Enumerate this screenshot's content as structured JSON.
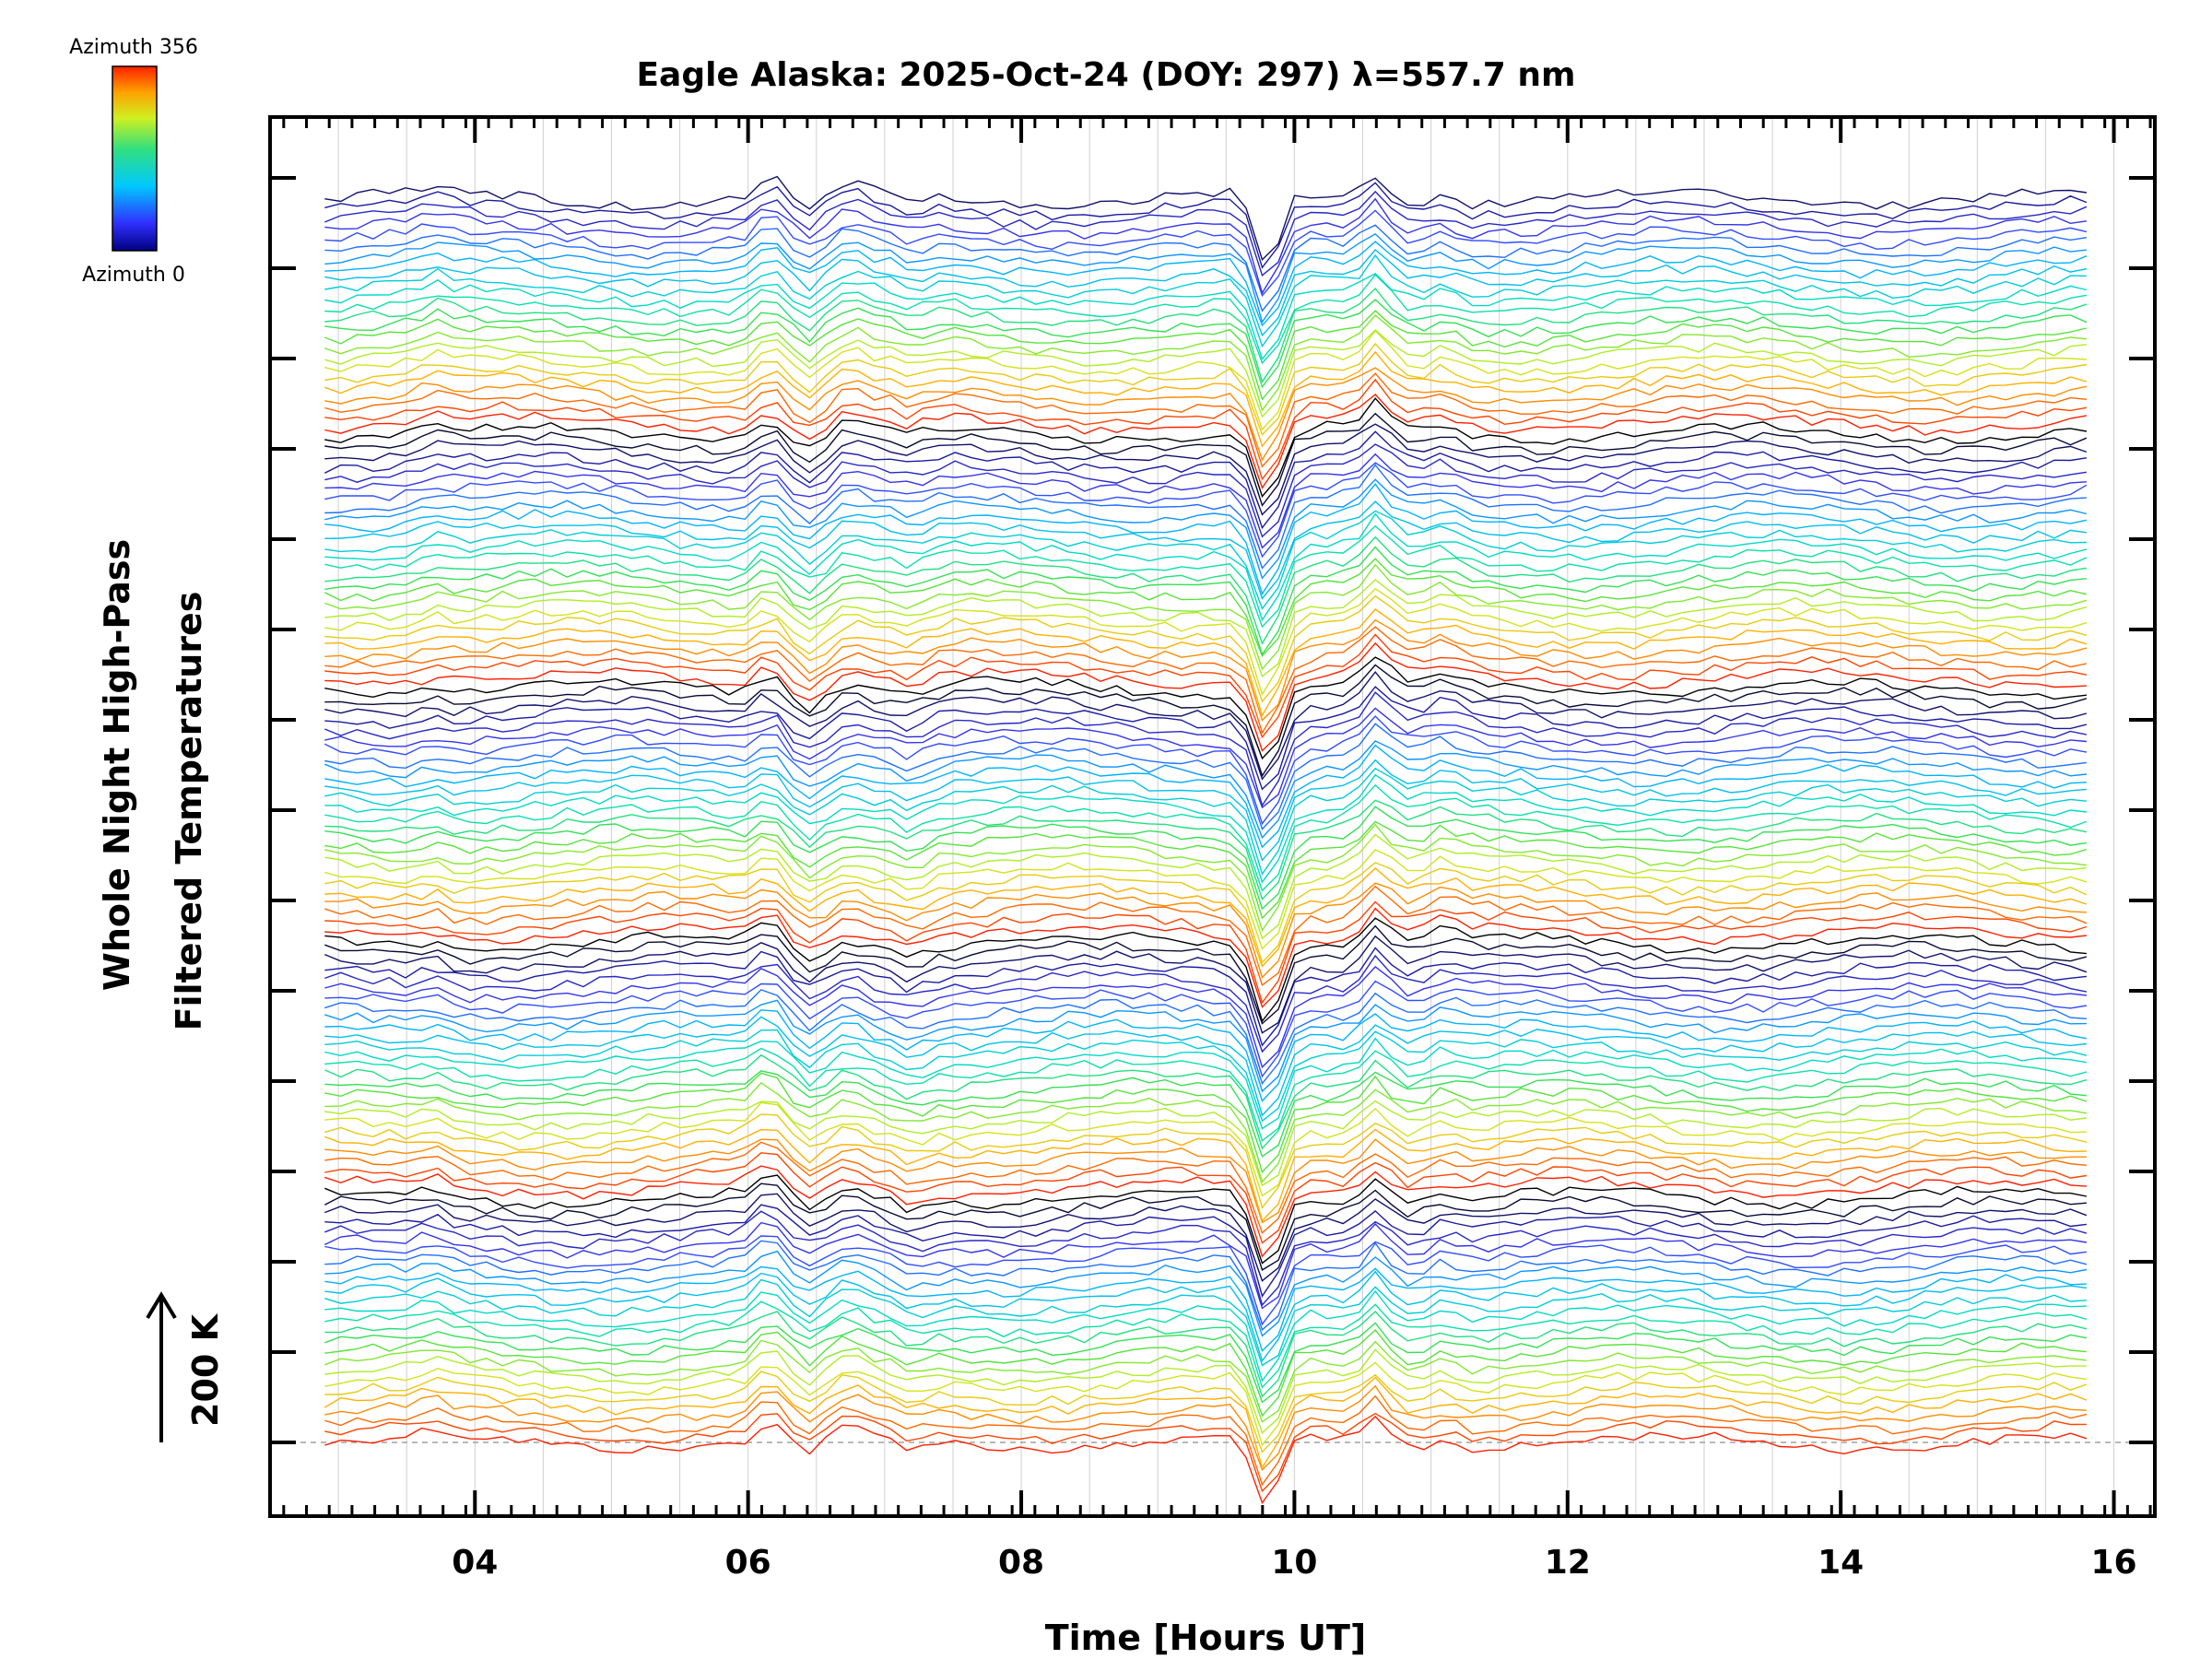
{
  "chart_data": {
    "type": "line",
    "title": "Eagle Alaska: 2025-Oct-24 (DOY: 297) λ=557.7 nm",
    "xlabel": "Time [Hours UT]",
    "ylabel_line1": "Whole Night High-Pass",
    "ylabel_line2": "Filtered Temperatures",
    "xlim": [
      2.5,
      16.3
    ],
    "x_ticks": [
      4,
      6,
      8,
      10,
      12,
      14,
      16
    ],
    "x_tick_labels": [
      "04",
      "06",
      "08",
      "10",
      "12",
      "14",
      "16"
    ],
    "scale_bar": {
      "label": "200 K",
      "value_K": 200
    },
    "colorbar": {
      "top_label": "Azimuth 356",
      "bottom_label": "Azimuth 0",
      "min": 0,
      "max": 356
    },
    "time_range_hours": [
      2.9,
      15.8
    ],
    "num_traces": 128,
    "features": [
      {
        "time": 6.15,
        "amplitude": 20
      },
      {
        "time": 6.45,
        "amplitude": -16
      },
      {
        "time": 6.75,
        "amplitude": 10
      },
      {
        "time": 7.2,
        "amplitude": -10
      },
      {
        "time": 9.8,
        "amplitude": -80
      },
      {
        "time": 10.6,
        "amplitude": 28
      },
      {
        "time": 11.1,
        "amplitude": 10
      },
      {
        "time": 3.7,
        "amplitude": 8
      }
    ],
    "colors": {
      "axis": "#000000",
      "grid": "#d0d0d0",
      "baseline": "#a0a0a0"
    }
  }
}
